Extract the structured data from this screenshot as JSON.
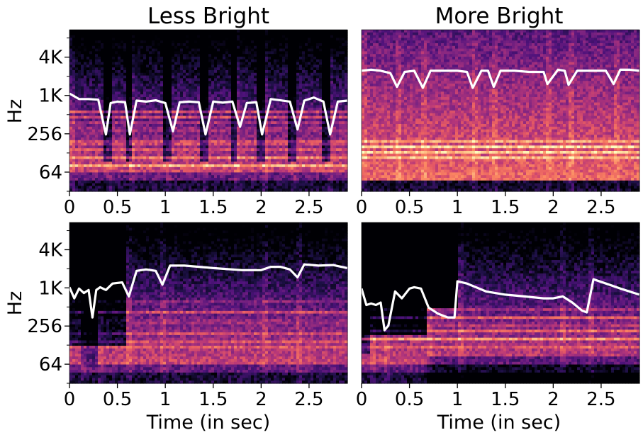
{
  "figure": {
    "column_titles": [
      "Less Bright",
      "More Bright"
    ],
    "ylabel": "Hz",
    "xlabel": "Time (in sec)"
  },
  "colors": {
    "background": "#ffffff",
    "centroid_line": "#ffffff",
    "colormap": [
      "#000004",
      "#1c1044",
      "#4f127b",
      "#812581",
      "#b5367a",
      "#e55964",
      "#fb8761",
      "#fec287",
      "#fcfdbf"
    ]
  },
  "chart_data": [
    {
      "type": "heatmap",
      "title": "Less Bright",
      "xlabel": "",
      "ylabel": "Hz",
      "x_ticks": [
        "0",
        "0.5",
        "1",
        "1.5",
        "2",
        "2.5"
      ],
      "x_tick_values": [
        0,
        0.5,
        1,
        1.5,
        2,
        2.5
      ],
      "y_ticks": [
        "64",
        "256",
        "1K",
        "4K"
      ],
      "y_tick_values": [
        64,
        256,
        1024,
        4096
      ],
      "xlim": [
        0,
        2.9
      ],
      "y_scale": "log",
      "onsets": [
        0.0,
        0.39,
        0.62,
        1.02,
        1.4,
        1.72,
        2.0,
        2.32,
        2.68
      ],
      "harmonic_bands_hz": [
        80,
        110,
        140,
        170,
        200,
        300,
        370,
        470,
        560
      ],
      "series": [
        {
          "name": "",
          "x": [
            0,
            0.1,
            0.2,
            0.3,
            0.38,
            0.43,
            0.5,
            0.58,
            0.63,
            0.7,
            0.8,
            0.9,
            1.0,
            1.08,
            1.15,
            1.25,
            1.35,
            1.42,
            1.5,
            1.6,
            1.7,
            1.78,
            1.85,
            1.95,
            2.01,
            2.1,
            2.2,
            2.3,
            2.38,
            2.45,
            2.55,
            2.65,
            2.72,
            2.8,
            2.9
          ],
          "y": [
            1100,
            900,
            900,
            880,
            250,
            780,
            820,
            800,
            250,
            850,
            820,
            860,
            780,
            280,
            800,
            820,
            800,
            250,
            820,
            790,
            820,
            330,
            780,
            800,
            250,
            900,
            860,
            820,
            300,
            850,
            950,
            820,
            250,
            820,
            850
          ]
        }
      ]
    },
    {
      "type": "heatmap",
      "title": "More Bright",
      "xlabel": "",
      "ylabel": "",
      "x_ticks": [
        "0",
        "0.5",
        "1",
        "1.5",
        "2",
        "2.5"
      ],
      "x_tick_values": [
        0,
        0.5,
        1,
        1.5,
        2,
        2.5
      ],
      "y_ticks": [],
      "y_tick_values": [],
      "xlim": [
        0,
        2.9
      ],
      "y_scale": "log",
      "onsets": [
        0.0,
        0.35,
        0.62,
        1.15,
        1.37,
        1.93,
        2.15,
        2.62
      ],
      "harmonic_bands_hz": [
        110,
        130,
        160,
        190
      ],
      "series": [
        {
          "name": "",
          "x": [
            0,
            0.1,
            0.2,
            0.3,
            0.37,
            0.45,
            0.55,
            0.64,
            0.72,
            0.85,
            1.0,
            1.1,
            1.16,
            1.25,
            1.32,
            1.38,
            1.45,
            1.6,
            1.75,
            1.9,
            1.94,
            2.05,
            2.12,
            2.16,
            2.25,
            2.4,
            2.55,
            2.63,
            2.7,
            2.8,
            2.9
          ],
          "y": [
            2500,
            2600,
            2500,
            2300,
            1400,
            2400,
            2500,
            1350,
            2500,
            2500,
            2500,
            2400,
            1350,
            2500,
            2500,
            1400,
            2500,
            2500,
            2400,
            2400,
            1550,
            2600,
            2500,
            1500,
            2500,
            2500,
            2500,
            1550,
            2600,
            2600,
            2500
          ]
        }
      ]
    },
    {
      "type": "heatmap",
      "title": "",
      "xlabel": "Time (in sec)",
      "ylabel": "Hz",
      "x_ticks": [
        "0",
        "0.5",
        "1",
        "1.5",
        "2",
        "2.5"
      ],
      "x_tick_values": [
        0,
        0.5,
        1,
        1.5,
        2,
        2.5
      ],
      "y_ticks": [
        "64",
        "256",
        "1K",
        "4K"
      ],
      "y_tick_values": [
        64,
        256,
        1024,
        4096
      ],
      "xlim": [
        0,
        2.9
      ],
      "y_scale": "log",
      "onsets": [
        0.12,
        0.3,
        0.6,
        0.96,
        2.02,
        2.37
      ],
      "harmonic_bands_hz": [
        115,
        150,
        200,
        300,
        430,
        600
      ],
      "series": [
        {
          "name": "",
          "x": [
            0,
            0.05,
            0.1,
            0.15,
            0.2,
            0.24,
            0.28,
            0.32,
            0.38,
            0.45,
            0.55,
            0.62,
            0.7,
            0.8,
            0.9,
            0.97,
            1.05,
            1.2,
            1.5,
            1.8,
            2.0,
            2.1,
            2.2,
            2.3,
            2.38,
            2.45,
            2.6,
            2.75,
            2.9
          ],
          "y": [
            1050,
            700,
            1000,
            850,
            950,
            350,
            950,
            1050,
            950,
            1200,
            1250,
            750,
            1900,
            2000,
            1900,
            1150,
            2300,
            2300,
            2100,
            1950,
            1950,
            2200,
            2200,
            2000,
            1500,
            2400,
            2300,
            2350,
            2100
          ]
        }
      ]
    },
    {
      "type": "heatmap",
      "title": "",
      "xlabel": "Time (in sec)",
      "ylabel": "",
      "x_ticks": [
        "0",
        "0.5",
        "1",
        "1.5",
        "2",
        "2.5"
      ],
      "x_tick_values": [
        0,
        0.5,
        1,
        1.5,
        2,
        2.5
      ],
      "y_ticks": [],
      "y_tick_values": [],
      "xlim": [
        0,
        2.9
      ],
      "y_scale": "log",
      "onsets": [
        0.1,
        0.25,
        0.67,
        1.0,
        2.08,
        2.36
      ],
      "harmonic_bands_hz": [
        115,
        160,
        210,
        270,
        350,
        450
      ],
      "series": [
        {
          "name": "",
          "x": [
            0,
            0.05,
            0.1,
            0.15,
            0.2,
            0.24,
            0.28,
            0.35,
            0.42,
            0.5,
            0.55,
            0.62,
            0.7,
            0.8,
            0.9,
            0.97,
            1.0,
            1.1,
            1.3,
            1.5,
            1.7,
            1.9,
            2.0,
            2.1,
            2.2,
            2.3,
            2.35,
            2.42,
            2.55,
            2.7,
            2.9
          ],
          "y": [
            1000,
            550,
            580,
            550,
            600,
            220,
            260,
            900,
            700,
            1000,
            1050,
            1000,
            500,
            400,
            350,
            350,
            1300,
            1200,
            900,
            800,
            750,
            700,
            700,
            750,
            600,
            450,
            420,
            1400,
            1200,
            1000,
            800
          ]
        }
      ]
    }
  ]
}
